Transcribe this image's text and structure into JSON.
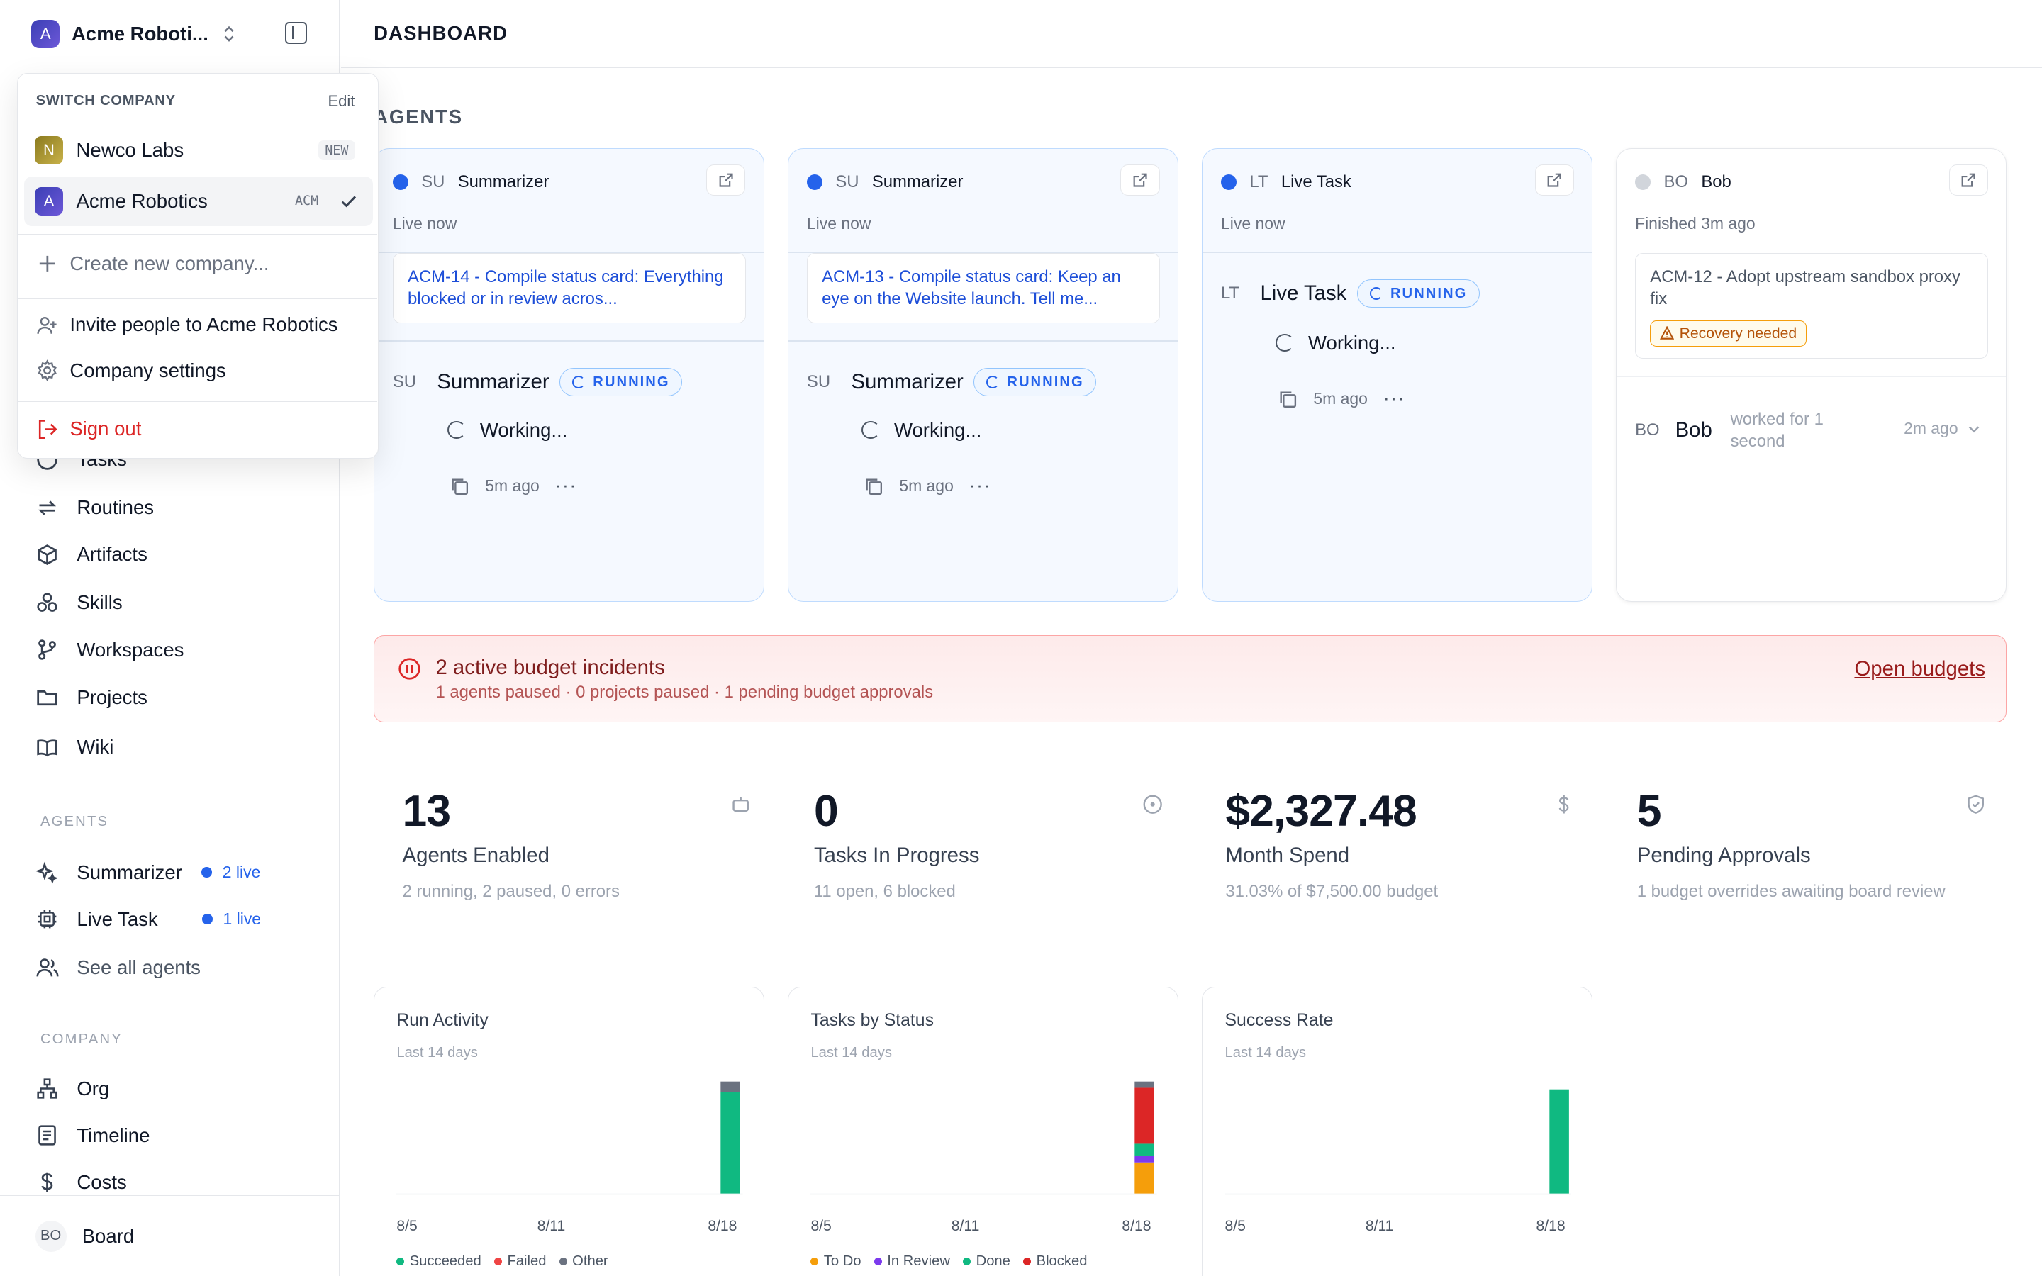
{
  "header": {
    "company_name": "Acme Roboti...",
    "company_initial": "A",
    "page_title": "DASHBOARD"
  },
  "switcher": {
    "heading": "SWITCH COMPANY",
    "edit_label": "Edit",
    "companies": [
      {
        "initial": "N",
        "name": "Newco Labs",
        "tag": "NEW",
        "color": "#b59a2a"
      },
      {
        "initial": "A",
        "name": "Acme Robotics",
        "tag": "ACM",
        "color": "#4f46c9"
      }
    ],
    "create_label": "Create new company...",
    "invite_label": "Invite people to Acme Robotics",
    "settings_label": "Company settings",
    "signout_label": "Sign out"
  },
  "sidebar": {
    "nav": [
      {
        "label": "Tasks",
        "icon": "circle-icon"
      },
      {
        "label": "Routines",
        "icon": "repeat-icon"
      },
      {
        "label": "Artifacts",
        "icon": "box-icon"
      },
      {
        "label": "Skills",
        "icon": "boxes-icon"
      },
      {
        "label": "Workspaces",
        "icon": "git-branch-icon"
      },
      {
        "label": "Projects",
        "icon": "folder-icon"
      },
      {
        "label": "Wiki",
        "icon": "book-icon"
      }
    ],
    "agents_label": "AGENTS",
    "agents": [
      {
        "label": "Summarizer",
        "live": "2 live",
        "icon": "sparkles-icon"
      },
      {
        "label": "Live Task",
        "live": "1 live",
        "icon": "cpu-icon"
      }
    ],
    "see_all": "See all agents",
    "company_label": "COMPANY",
    "company_nav": [
      {
        "label": "Org",
        "icon": "org-chart-icon"
      },
      {
        "label": "Timeline",
        "icon": "list-icon"
      },
      {
        "label": "Costs",
        "icon": "dollar-icon"
      }
    ],
    "user_initials": "BO",
    "user_label": "Board"
  },
  "agents_section": {
    "heading": "AGENTS",
    "cards": [
      {
        "initials": "SU",
        "name": "Summarizer",
        "status": "Live now",
        "task": "ACM-14 - Compile status card: Everything blocked or in review acros...",
        "run_initials": "SU",
        "run_name": "Summarizer",
        "badge": "RUNNING",
        "working": "Working...",
        "ago": "5m ago",
        "dots": "···"
      },
      {
        "initials": "SU",
        "name": "Summarizer",
        "status": "Live now",
        "task": "ACM-13 - Compile status card: Keep an eye on the Website launch. Tell me...",
        "run_initials": "SU",
        "run_name": "Summarizer",
        "badge": "RUNNING",
        "working": "Working...",
        "ago": "5m ago",
        "dots": "···"
      },
      {
        "initials": "LT",
        "name": "Live Task",
        "status": "Live now",
        "run_initials": "LT",
        "run_name": "Live Task",
        "badge": "RUNNING",
        "working": "Working...",
        "ago": "5m ago",
        "dots": "···"
      },
      {
        "initials": "BO",
        "name": "Bob",
        "status": "Finished 3m ago",
        "task": "ACM-12 - Adopt upstream sandbox proxy fix",
        "recovery": "Recovery needed",
        "run_initials": "BO",
        "run_name": "Bob",
        "run_desc": "worked for 1 second",
        "run_ago": "2m ago"
      }
    ]
  },
  "incidents": {
    "title": "2 active budget incidents",
    "subtitle": "1 agents paused · 0 projects paused · 1 pending budget approvals",
    "link": "Open budgets"
  },
  "metrics": [
    {
      "value": "13",
      "label": "Agents Enabled",
      "sub": "2 running, 2 paused, 0 errors",
      "icon": "bot-icon"
    },
    {
      "value": "0",
      "label": "Tasks In Progress",
      "sub": "11 open, 6 blocked",
      "icon": "circle-dot-icon"
    },
    {
      "value": "$2,327.48",
      "label": "Month Spend",
      "sub": "31.03% of $7,500.00 budget",
      "icon": "dollar-icon"
    },
    {
      "value": "5",
      "label": "Pending Approvals",
      "sub": "1 budget overrides awaiting board review",
      "icon": "shield-icon"
    }
  ],
  "charts": [
    {
      "title": "Run Activity",
      "subtitle": "Last 14 days",
      "x_labels": [
        "8/5",
        "8/11",
        "8/18"
      ],
      "legend": [
        {
          "label": "Succeeded",
          "color": "#10b981"
        },
        {
          "label": "Failed",
          "color": "#ef4444"
        },
        {
          "label": "Other",
          "color": "#6b7280"
        }
      ]
    },
    {
      "title": "Tasks by Status",
      "subtitle": "Last 14 days",
      "x_labels": [
        "8/5",
        "8/11",
        "8/18"
      ],
      "legend": [
        {
          "label": "To Do",
          "color": "#f59e0b"
        },
        {
          "label": "In Review",
          "color": "#7c3aed"
        },
        {
          "label": "Done",
          "color": "#10b981"
        },
        {
          "label": "Blocked",
          "color": "#dc2626"
        }
      ]
    },
    {
      "title": "Success Rate",
      "subtitle": "Last 14 days",
      "x_labels": [
        "8/5",
        "8/11",
        "8/18"
      ],
      "legend": []
    }
  ],
  "chart_data": [
    {
      "type": "bar",
      "title": "Run Activity",
      "subtitle": "Last 14 days",
      "categories": [
        "8/5",
        "8/6",
        "8/7",
        "8/8",
        "8/9",
        "8/10",
        "8/11",
        "8/12",
        "8/13",
        "8/14",
        "8/15",
        "8/16",
        "8/17",
        "8/18"
      ],
      "stacked": true,
      "series": [
        {
          "name": "Succeeded",
          "color": "#10b981",
          "values": [
            0,
            0,
            0,
            0,
            0,
            0,
            0,
            0,
            0,
            0,
            0,
            0,
            0,
            10
          ]
        },
        {
          "name": "Failed",
          "color": "#ef4444",
          "values": [
            0,
            0,
            0,
            0,
            0,
            0,
            0,
            0,
            0,
            0,
            0,
            0,
            0,
            0
          ]
        },
        {
          "name": "Other",
          "color": "#6b7280",
          "values": [
            0,
            0,
            0,
            0,
            0,
            0,
            0,
            0,
            0,
            0,
            0,
            0,
            0,
            1
          ]
        }
      ]
    },
    {
      "type": "bar",
      "title": "Tasks by Status",
      "subtitle": "Last 14 days",
      "categories": [
        "8/5",
        "8/6",
        "8/7",
        "8/8",
        "8/9",
        "8/10",
        "8/11",
        "8/12",
        "8/13",
        "8/14",
        "8/15",
        "8/16",
        "8/17",
        "8/18"
      ],
      "stacked": true,
      "series": [
        {
          "name": "To Do",
          "color": "#f59e0b",
          "values": [
            0,
            0,
            0,
            0,
            0,
            0,
            0,
            0,
            0,
            0,
            0,
            0,
            0,
            5
          ]
        },
        {
          "name": "In Review",
          "color": "#7c3aed",
          "values": [
            0,
            0,
            0,
            0,
            0,
            0,
            0,
            0,
            0,
            0,
            0,
            0,
            0,
            1
          ]
        },
        {
          "name": "Done",
          "color": "#10b981",
          "values": [
            0,
            0,
            0,
            0,
            0,
            0,
            0,
            0,
            0,
            0,
            0,
            0,
            0,
            2
          ]
        },
        {
          "name": "Blocked",
          "color": "#dc2626",
          "values": [
            0,
            0,
            0,
            0,
            0,
            0,
            0,
            0,
            0,
            0,
            0,
            0,
            0,
            9
          ]
        },
        {
          "name": "",
          "color": "#6b7280",
          "values": [
            0,
            0,
            0,
            0,
            0,
            0,
            0,
            0,
            0,
            0,
            0,
            0,
            0,
            1
          ]
        }
      ]
    },
    {
      "type": "bar",
      "title": "Success Rate",
      "subtitle": "Last 14 days",
      "categories": [
        "8/5",
        "8/6",
        "8/7",
        "8/8",
        "8/9",
        "8/10",
        "8/11",
        "8/12",
        "8/13",
        "8/14",
        "8/15",
        "8/16",
        "8/17",
        "8/18"
      ],
      "series": [
        {
          "name": "",
          "color": "#10b981",
          "values": [
            0,
            0,
            0,
            0,
            0,
            0,
            0,
            0,
            0,
            0,
            0,
            0,
            0,
            100
          ]
        }
      ],
      "ylim": [
        0,
        110
      ]
    }
  ]
}
